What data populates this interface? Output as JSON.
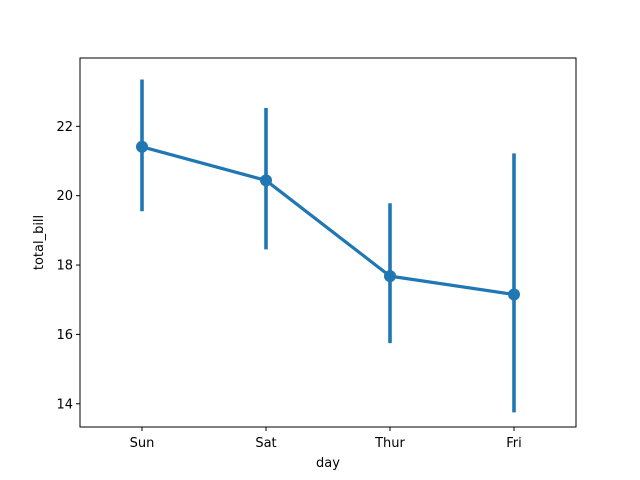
{
  "chart_data": {
    "type": "line",
    "categories": [
      "Sun",
      "Sat",
      "Thur",
      "Fri"
    ],
    "series": [
      {
        "values": [
          21.41,
          20.44,
          17.68,
          17.15
        ],
        "ci_low": [
          19.55,
          18.45,
          15.75,
          13.75
        ],
        "ci_high": [
          23.35,
          22.53,
          19.78,
          21.22
        ],
        "color": "#1f77b4"
      }
    ],
    "xlabel": "day",
    "ylabel": "total_bill",
    "ylim": [
      13.33,
      23.97
    ],
    "yticks": [
      14,
      16,
      18,
      20,
      22
    ],
    "grid": false,
    "legend": "none"
  }
}
